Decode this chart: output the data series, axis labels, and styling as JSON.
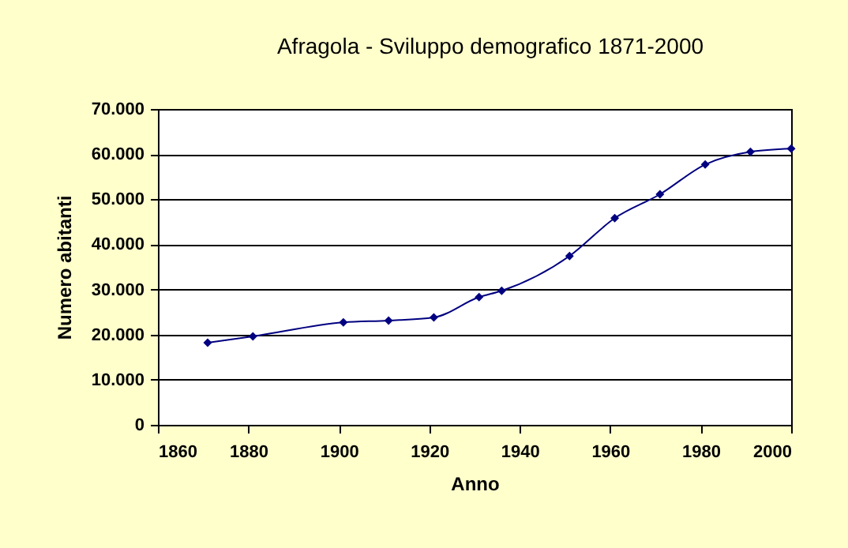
{
  "chart_data": {
    "type": "line",
    "title": "Afragola - Sviluppo demografico 1871-2000",
    "xlabel": "Anno",
    "ylabel": "Numero abitanti",
    "x": [
      1871,
      1881,
      1901,
      1911,
      1921,
      1931,
      1936,
      1951,
      1961,
      1971,
      1981,
      1991,
      2000
    ],
    "series": [
      {
        "color": "#000080",
        "values": [
          18200,
          19600,
          22700,
          23100,
          23800,
          28300,
          29700,
          37400,
          45800,
          51100,
          57700,
          60500,
          61200
        ]
      }
    ],
    "xlim": [
      1860,
      2000
    ],
    "xticks": [
      1860,
      1880,
      1900,
      1920,
      1940,
      1960,
      1980,
      2000
    ],
    "ylim": [
      0,
      70000
    ],
    "yticks": [
      {
        "value": 0,
        "label": "0"
      },
      {
        "value": 10000,
        "label": "10.000"
      },
      {
        "value": 20000,
        "label": "20.000"
      },
      {
        "value": 30000,
        "label": "30.000"
      },
      {
        "value": 40000,
        "label": "40.000"
      },
      {
        "value": 50000,
        "label": "50.000"
      },
      {
        "value": 60000,
        "label": "60.000"
      },
      {
        "value": 70000,
        "label": "70.000"
      }
    ],
    "grid": "y",
    "marker": "diamond",
    "line_style": "solid"
  }
}
